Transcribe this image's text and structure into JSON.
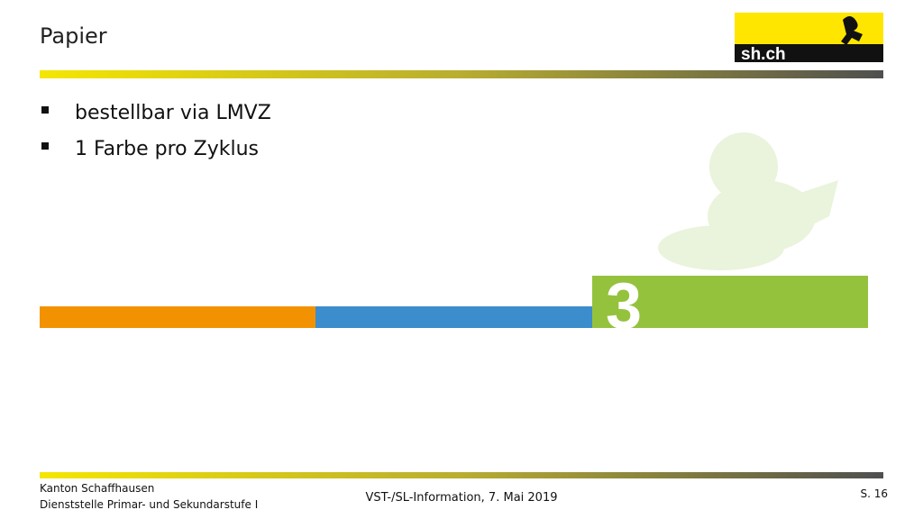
{
  "header": {
    "title": "Papier",
    "logo_text": "sh.ch"
  },
  "bullets": [
    "bestellbar via LMVZ",
    "1 Farbe pro Zyklus"
  ],
  "graphic": {
    "label": "3"
  },
  "footer": {
    "org": "Kanton Schaffhausen",
    "dept": "Dienststelle Primar- und Sekundarstufe I",
    "center": "VST-/SL-Information, 7. Mai 2019",
    "page": "S. 16"
  }
}
